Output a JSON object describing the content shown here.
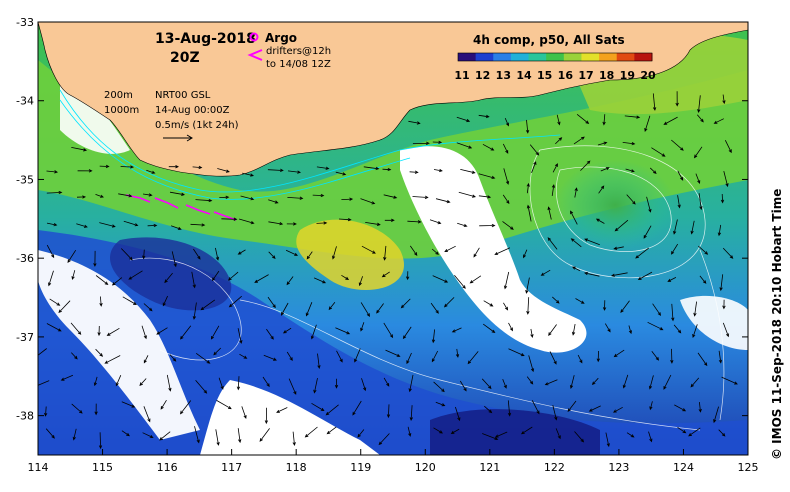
{
  "title": {
    "date": "13-Aug-2018",
    "time": "20Z"
  },
  "legend": {
    "argo_label": "Argo",
    "drifter_label": "drifters@12h",
    "drifter_range": "to 14/08 12Z",
    "argo_color": "#ff00ff",
    "drifter_color": "#ff00ff"
  },
  "annotations": {
    "depth_200": "200m",
    "depth_1000": "1000m",
    "product": "NRT00 GSL",
    "product_time": "14-Aug 00:00Z",
    "scale_vector": "0.5m/s (1kt 24h)"
  },
  "colorbar": {
    "title": "4h comp, p50, All Sats",
    "ticks": [
      "11",
      "12",
      "13",
      "14",
      "15",
      "16",
      "17",
      "18",
      "19",
      "20"
    ],
    "colors": [
      "#2a0f7a",
      "#1e3fd0",
      "#2b7fe6",
      "#20b0d8",
      "#28c59a",
      "#3fc24a",
      "#9ad23a",
      "#e3e02a",
      "#f4a21e",
      "#e14a12",
      "#b8140e"
    ]
  },
  "axes": {
    "x_ticks": [
      "114",
      "115",
      "116",
      "117",
      "118",
      "119",
      "120",
      "121",
      "122",
      "123",
      "124",
      "125"
    ],
    "y_ticks": [
      "-33",
      "-34",
      "-35",
      "-36",
      "-37",
      "-38"
    ],
    "x_range": [
      114,
      125
    ],
    "y_range": [
      -38.5,
      -33
    ]
  },
  "credit": "© IMOS 11-Sep-2018 20:10 Hobart Time",
  "colors": {
    "land": "#f9c896",
    "cloud": "#ffffff",
    "current_contour": "#00e5ff"
  }
}
